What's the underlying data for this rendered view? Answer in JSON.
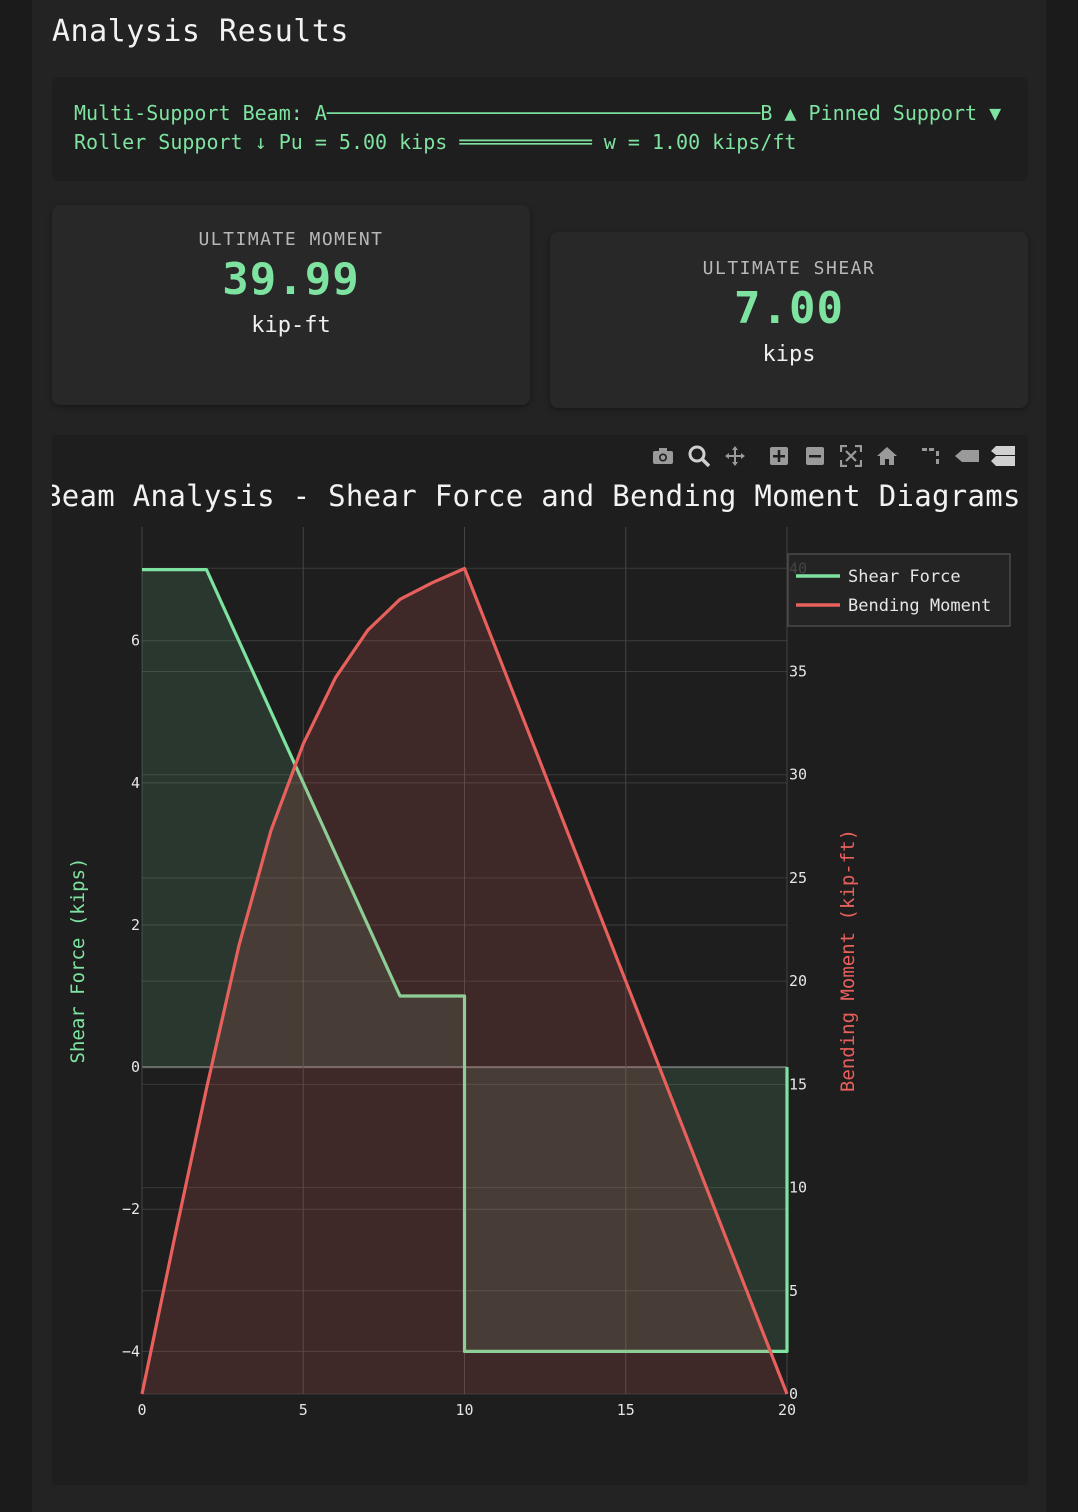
{
  "header": {
    "title": "Analysis Results"
  },
  "beam": {
    "description": "Multi-Support Beam: A────────────────────────────────────B ▲ Pinned Support ▼ Roller Support ↓ Pu = 5.00 kips ═══════════ w = 1.00 kips/ft"
  },
  "cards": {
    "moment": {
      "label": "ULTIMATE MOMENT",
      "value": "39.99",
      "unit": "kip-ft"
    },
    "shear": {
      "label": "ULTIMATE SHEAR",
      "value": "7.00",
      "unit": "kips"
    }
  },
  "modebar": {
    "icons": [
      "camera-icon",
      "zoom-icon",
      "pan-icon",
      "zoom-in-icon",
      "zoom-out-icon",
      "autoscale-icon",
      "reset-axes-icon",
      "spike-lines-icon",
      "hover-closest-icon",
      "hover-compare-icon"
    ]
  },
  "colors": {
    "accent": "#7ee3a0",
    "moment": "#e8605c",
    "panel": "#1e1e1e"
  },
  "chart_data": {
    "type": "line",
    "title": "Beam Analysis - Shear Force and Bending Moment Diagrams",
    "ylabel": "Shear Force (kips)",
    "y2label": "Bending Moment (kip-ft)",
    "xlim": [
      0,
      20
    ],
    "ylim": [
      -4.6,
      7.6
    ],
    "y2lim": [
      0,
      42
    ],
    "x_ticks": [
      0,
      5,
      10,
      15,
      20
    ],
    "y_ticks": [
      -4,
      -2,
      0,
      2,
      4,
      6
    ],
    "y2_ticks": [
      0,
      5,
      10,
      15,
      20,
      25,
      30,
      35,
      40
    ],
    "grid": true,
    "legend": "top-right",
    "series": [
      {
        "name": "Shear Force",
        "axis": "y",
        "color": "#7ee3a0",
        "fill": "tozeroy",
        "x": [
          0,
          2,
          8,
          10,
          10,
          20,
          20
        ],
        "y": [
          7,
          7,
          1,
          1,
          -4,
          -4,
          0
        ]
      },
      {
        "name": "Bending Moment",
        "axis": "y2",
        "color": "#e8605c",
        "fill": "tozeroy",
        "x": [
          0,
          1,
          2,
          3,
          4,
          5,
          6,
          7,
          8,
          9,
          10,
          12,
          14,
          16,
          18,
          20
        ],
        "y": [
          0,
          7.5,
          14.8,
          21.7,
          27.3,
          31.5,
          34.7,
          37.0,
          38.5,
          39.3,
          39.99,
          32.0,
          24.0,
          16.0,
          8.0,
          0
        ]
      }
    ]
  }
}
